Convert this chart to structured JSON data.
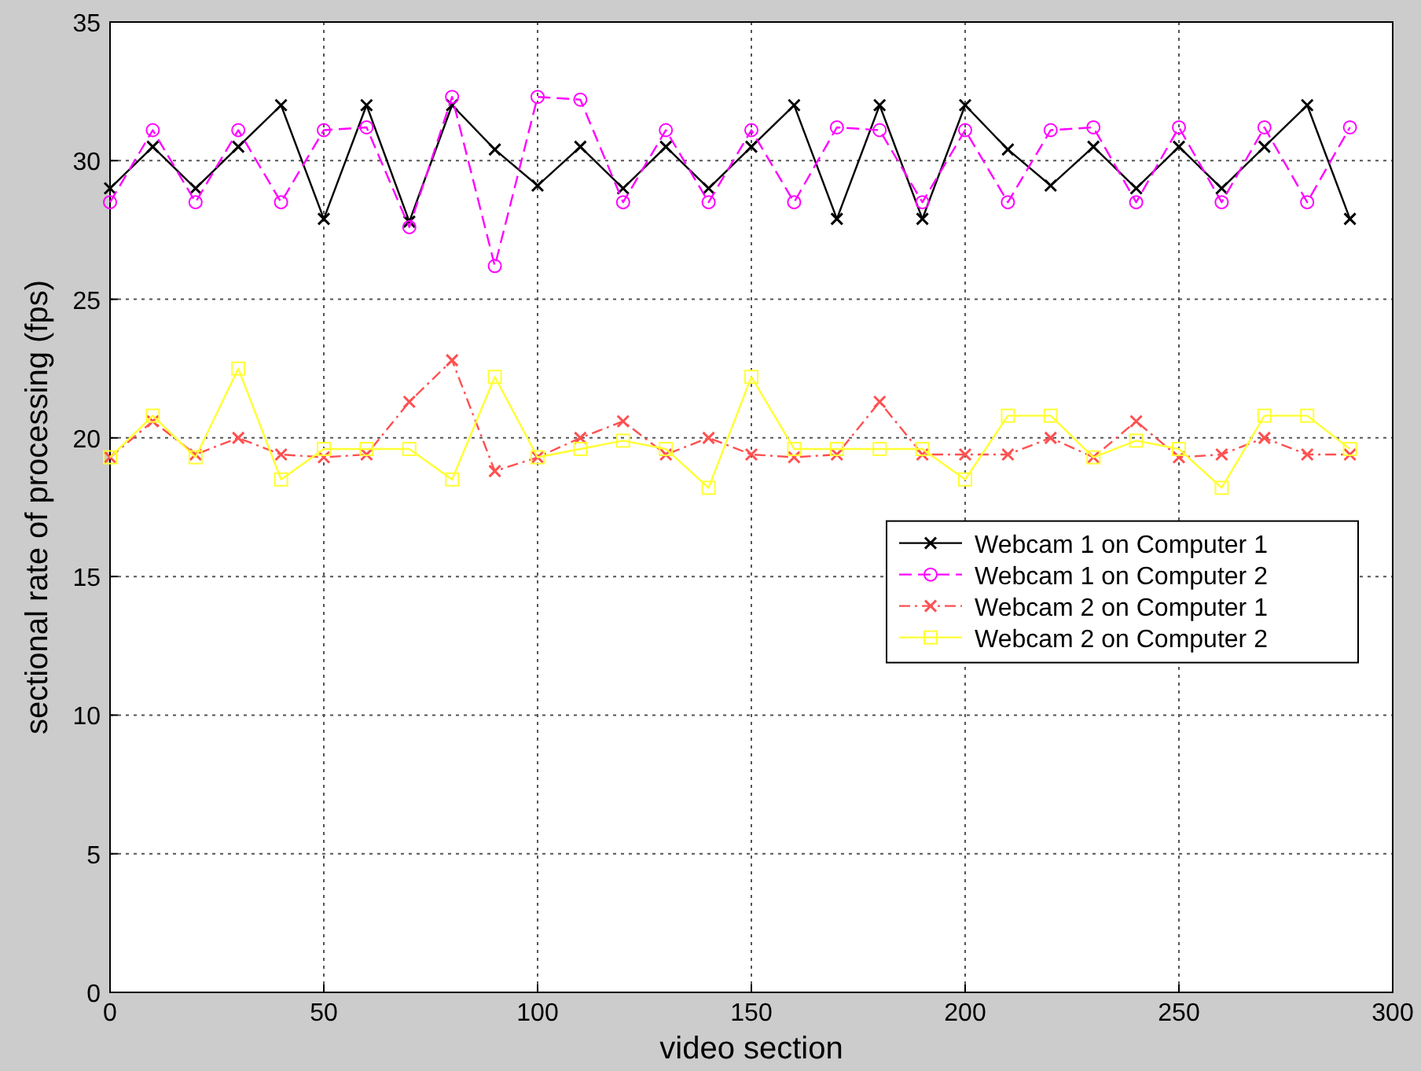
{
  "chart_data": {
    "type": "line",
    "xlabel": "video section",
    "ylabel": "sectional rate of processing (fps)",
    "x": [
      0,
      10,
      20,
      30,
      40,
      50,
      60,
      70,
      80,
      90,
      100,
      110,
      120,
      130,
      140,
      150,
      160,
      170,
      180,
      190,
      200,
      210,
      220,
      230,
      240,
      250,
      260,
      270,
      280,
      290
    ],
    "series": [
      {
        "name": "Webcam 1 on Computer 1",
        "color": "#000000",
        "marker": "cross",
        "line_style": "solid",
        "values": [
          29.0,
          30.5,
          29.0,
          30.5,
          32.0,
          27.9,
          32.0,
          27.8,
          32.0,
          30.4,
          29.1,
          30.5,
          29.0,
          30.5,
          29.0,
          30.5,
          32.0,
          27.9,
          32.0,
          27.9,
          32.0,
          30.4,
          29.1,
          30.5,
          29.0,
          30.5,
          29.0,
          30.5,
          32.0,
          27.9
        ]
      },
      {
        "name": "Webcam 1 on Computer 2",
        "color": "#ff00ff",
        "marker": "circle",
        "line_style": "dashed",
        "values": [
          28.5,
          31.1,
          28.5,
          31.1,
          28.5,
          31.1,
          31.2,
          27.6,
          32.3,
          26.2,
          32.3,
          32.2,
          28.5,
          31.1,
          28.5,
          31.1,
          28.5,
          31.2,
          31.1,
          28.5,
          31.1,
          28.5,
          31.1,
          31.2,
          28.5,
          31.2,
          28.5,
          31.2,
          28.5,
          31.2
        ]
      },
      {
        "name": "Webcam 2 on Computer 1",
        "color": "#ff5050",
        "marker": "cross",
        "line_style": "dashed",
        "values": [
          19.3,
          20.6,
          19.4,
          20.0,
          19.4,
          19.3,
          19.4,
          21.3,
          22.8,
          18.8,
          19.3,
          20.0,
          20.6,
          19.4,
          20.0,
          19.4,
          19.3,
          19.4,
          21.3,
          19.4,
          19.4,
          19.4,
          20.0,
          19.3,
          20.6,
          19.3,
          19.4,
          20.0,
          19.4,
          19.4
        ]
      },
      {
        "name": "Webcam 2 on Computer 2",
        "color": "#ffff33",
        "marker": "square",
        "line_style": "solid",
        "values": [
          19.3,
          20.8,
          19.3,
          22.5,
          18.5,
          19.6,
          19.6,
          19.6,
          18.5,
          22.2,
          19.3,
          19.6,
          19.9,
          19.6,
          18.2,
          22.2,
          19.6,
          19.6,
          19.6,
          19.6,
          18.5,
          20.8,
          20.8,
          19.3,
          19.9,
          19.6,
          18.2,
          20.8,
          20.8,
          19.6
        ]
      }
    ],
    "xlim": [
      0,
      300
    ],
    "xticks": [
      0,
      50,
      100,
      150,
      200,
      250,
      300
    ],
    "ylim": [
      0,
      35
    ],
    "yticks": [
      0,
      5,
      10,
      15,
      20,
      25,
      30,
      35
    ],
    "grid": true,
    "legend": "right"
  }
}
